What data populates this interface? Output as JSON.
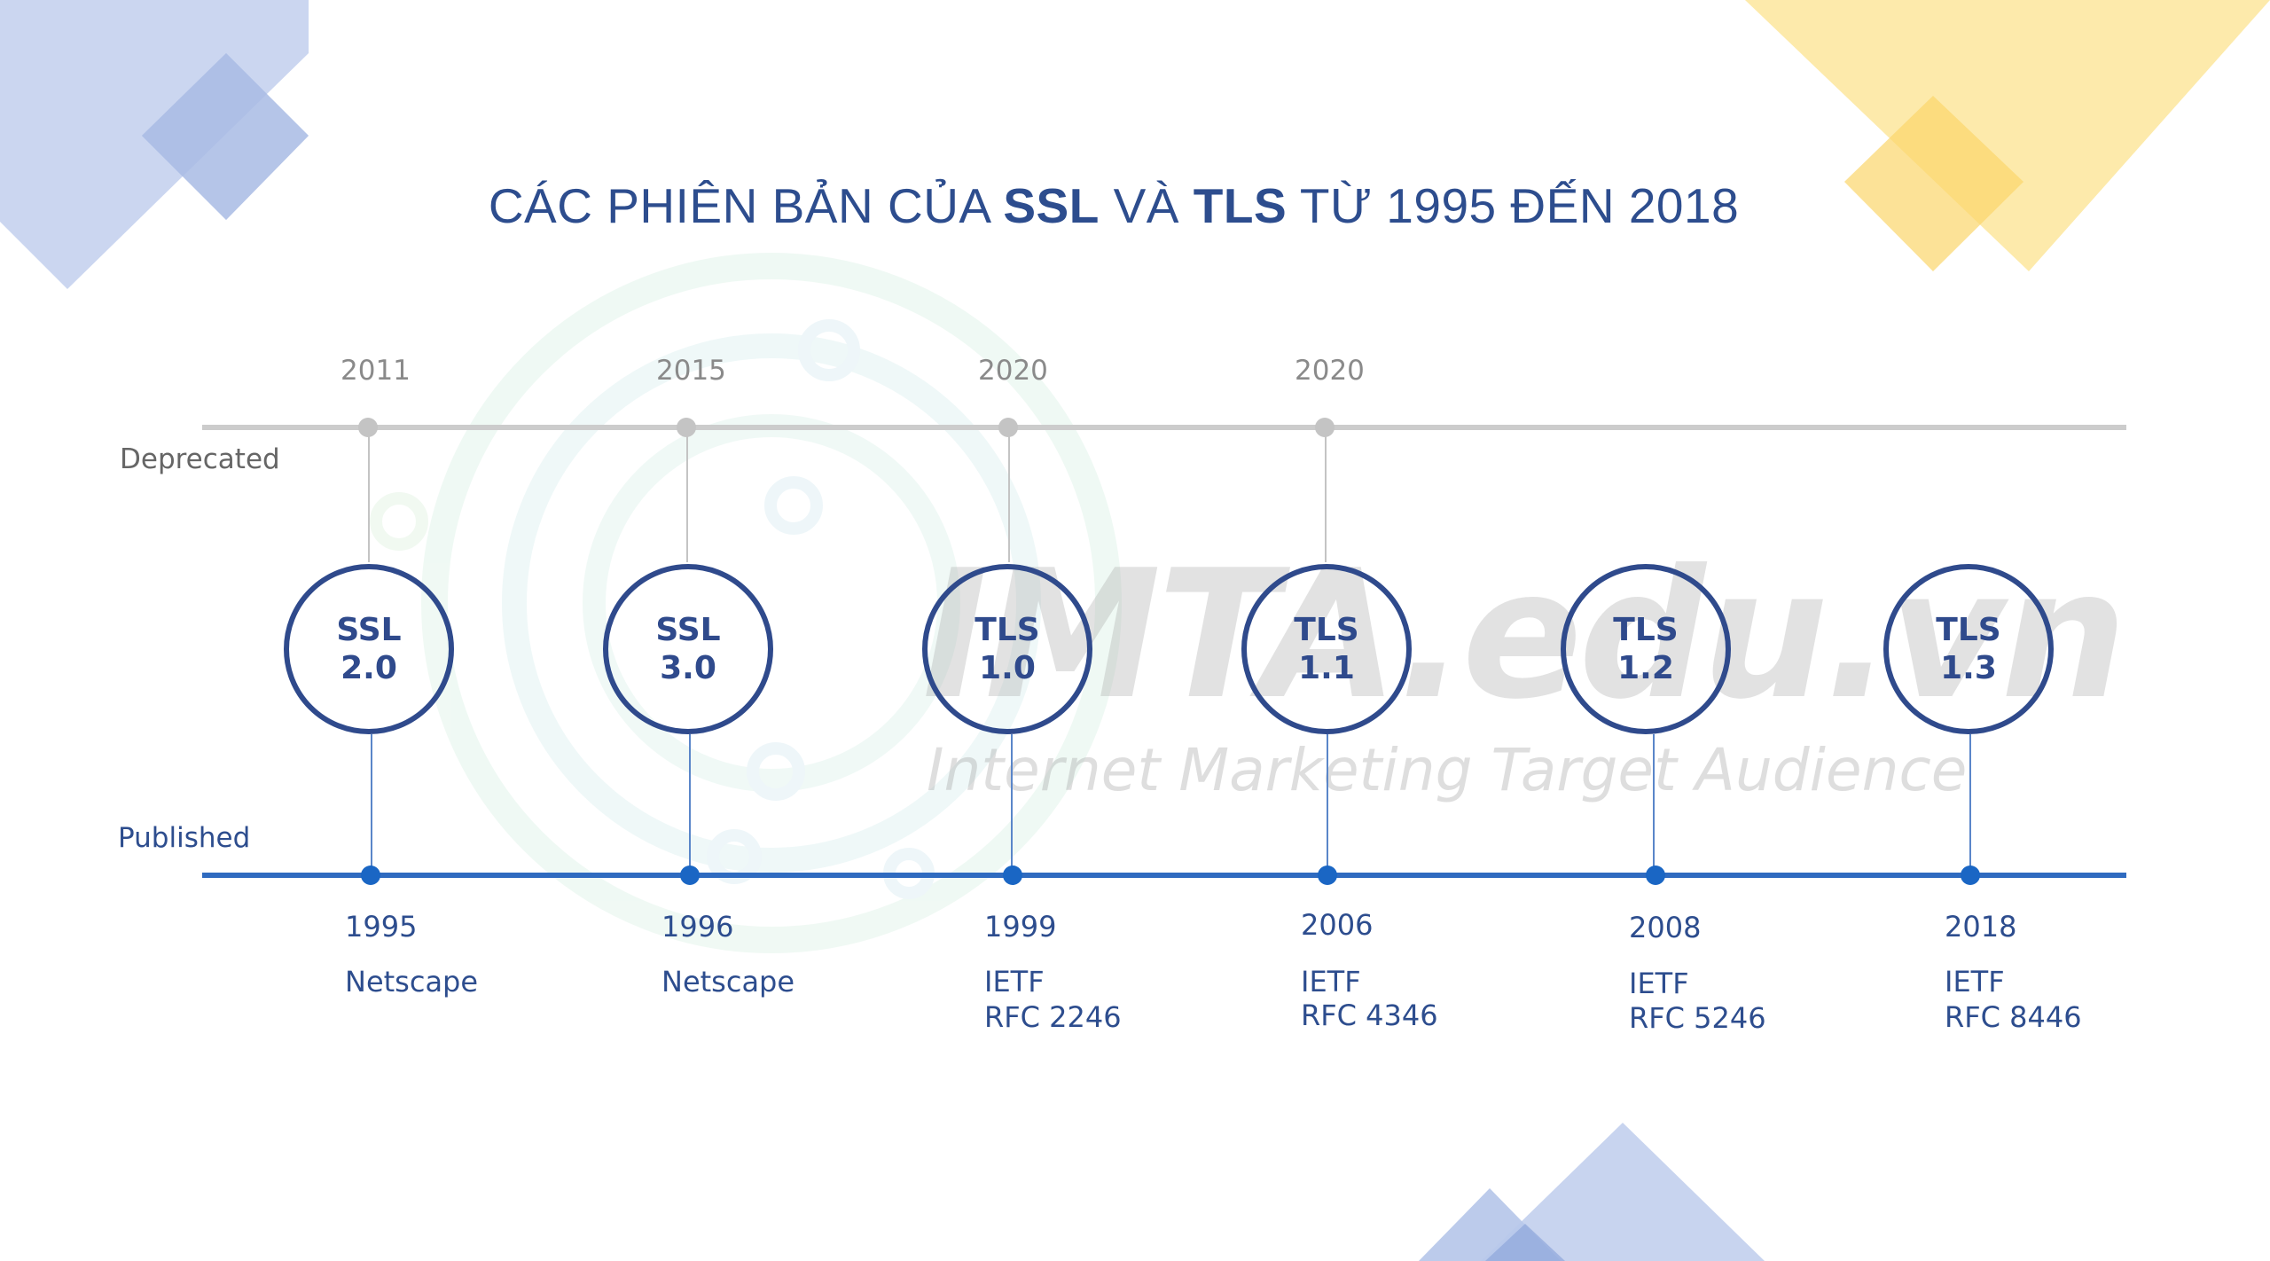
{
  "title": {
    "prefix": "CÁC PHIÊN BẢN CỦA ",
    "ssl": "SSL",
    "and": " VÀ ",
    "tls": "TLS",
    "suffix": " TỪ 1995 ĐẾN 2018"
  },
  "axis_labels": {
    "deprecated": "Deprecated",
    "published": "Published"
  },
  "watermark": {
    "main": "IMTA.edu.vn",
    "sub": "Internet Marketing Target Audience"
  },
  "versions": [
    {
      "line1": "SSL",
      "line2": "2.0",
      "deprecated_year": "2011",
      "published_year": "1995",
      "org": "Netscape",
      "rfc": ""
    },
    {
      "line1": "SSL",
      "line2": "3.0",
      "deprecated_year": "2015",
      "published_year": "1996",
      "org": "Netscape",
      "rfc": ""
    },
    {
      "line1": "TLS",
      "line2": "1.0",
      "deprecated_year": "2020",
      "published_year": "1999",
      "org": "IETF",
      "rfc": "RFC 2246"
    },
    {
      "line1": "TLS",
      "line2": "1.1",
      "deprecated_year": "2020",
      "published_year": "2006",
      "org": "IETF",
      "rfc": "RFC 4346"
    },
    {
      "line1": "TLS",
      "line2": "1.2",
      "deprecated_year": "",
      "published_year": "2008",
      "org": "IETF",
      "rfc": "RFC 5246"
    },
    {
      "line1": "TLS",
      "line2": "1.3",
      "deprecated_year": "",
      "published_year": "2018",
      "org": "IETF",
      "rfc": "RFC 8446"
    }
  ],
  "colors": {
    "navy": "#2f4a8c",
    "published_line": "#2f6bc0",
    "deprecated_line": "#cccccc",
    "deco_blue": "#c5d2ee",
    "deco_yellow": "#fde9a6"
  }
}
